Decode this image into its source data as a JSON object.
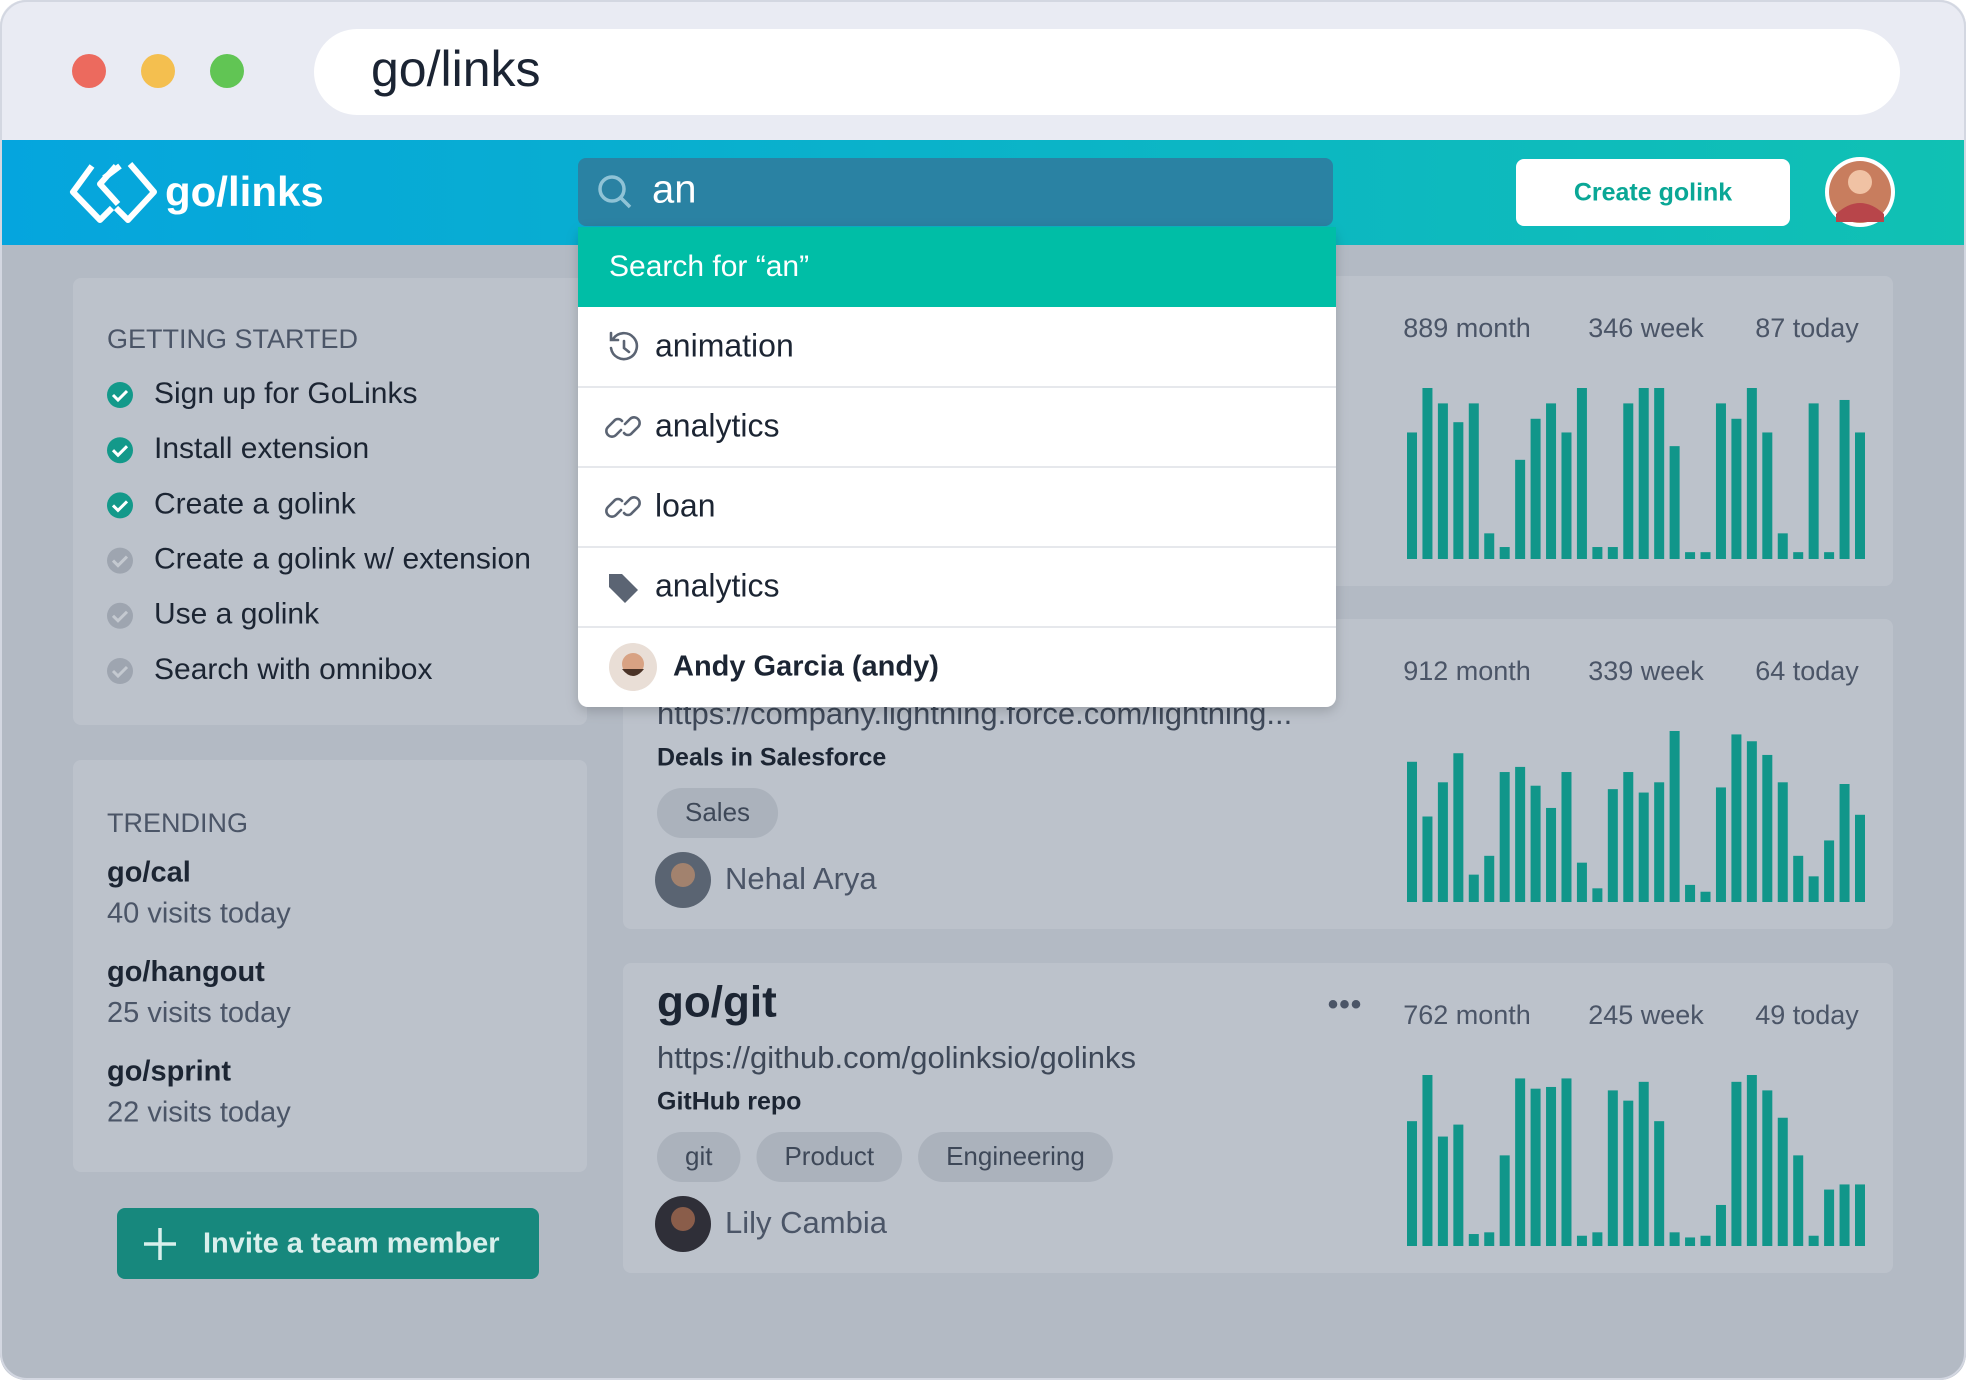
{
  "browser": {
    "url": "go/links"
  },
  "header": {
    "logo": "go/links",
    "search_query": "an",
    "create_button": "Create golink"
  },
  "search_dropdown": {
    "search_for": "Search for “an”",
    "results": [
      {
        "icon": "history",
        "label": "animation"
      },
      {
        "icon": "link",
        "label": "analytics"
      },
      {
        "icon": "link",
        "label": "loan"
      },
      {
        "icon": "tag",
        "label": "analytics"
      },
      {
        "icon": "user",
        "label": "Andy Garcia (andy)"
      }
    ]
  },
  "getting_started": {
    "title": "GETTING STARTED",
    "items": [
      {
        "label": "Sign up for GoLinks",
        "done": true
      },
      {
        "label": "Install extension",
        "done": true
      },
      {
        "label": "Create a golink",
        "done": true
      },
      {
        "label": "Create a golink w/ extension",
        "done": false
      },
      {
        "label": "Use a golink",
        "done": false
      },
      {
        "label": "Search with omnibox",
        "done": false
      }
    ]
  },
  "trending": {
    "title": "TRENDING",
    "items": [
      {
        "link": "go/cal",
        "visits": "40 visits today"
      },
      {
        "link": "go/hangout",
        "visits": "25 visits today"
      },
      {
        "link": "go/sprint",
        "visits": "22 visits today"
      }
    ]
  },
  "invite_button": "Invite a team member",
  "links": [
    {
      "stats": [
        "889 month",
        "346 week",
        "87 today"
      ],
      "bars": [
        7.4,
        10,
        9.1,
        8,
        9.1,
        1.5,
        0.7,
        5.8,
        8.2,
        9.1,
        7.4,
        10,
        0.7,
        0.7,
        9.1,
        10,
        10,
        6.6,
        0.4,
        0.4,
        9.1,
        8.2,
        10,
        7.4,
        1.5,
        0.4,
        9.1,
        0.4,
        9.3,
        7.4
      ]
    },
    {
      "url": "https://company.lightning.force.com/lightning...",
      "description": "Deals in Salesforce",
      "tags": [
        "Sales"
      ],
      "owner": "Nehal Arya",
      "stats": [
        "912 month",
        "339 week",
        "64 today"
      ],
      "bars": [
        8.2,
        5,
        7,
        8.7,
        1.6,
        2.7,
        7.6,
        7.9,
        6.8,
        5.5,
        7.6,
        2.3,
        0.8,
        6.6,
        7.6,
        6.4,
        7,
        10,
        1,
        0.6,
        6.7,
        9.8,
        9.4,
        8.6,
        7,
        2.7,
        1.5,
        3.6,
        6.9,
        5.1
      ]
    },
    {
      "name": "go/git",
      "url": "https://github.com/golinksio/golinks",
      "description": "GitHub repo",
      "tags": [
        "git",
        "Product",
        "Engineering"
      ],
      "owner": "Lily Cambia",
      "stats": [
        "762 month",
        "245 week",
        "49 today"
      ],
      "bars": [
        7.3,
        10,
        6.4,
        7.1,
        0.7,
        0.8,
        5.3,
        9.8,
        9.2,
        9.3,
        9.8,
        0.6,
        0.8,
        9.1,
        8.5,
        9.6,
        7.3,
        0.8,
        0.5,
        0.6,
        2.4,
        9.6,
        10,
        9.1,
        7.5,
        5.3,
        0.6,
        3.3,
        3.6,
        3.6
      ]
    }
  ]
}
